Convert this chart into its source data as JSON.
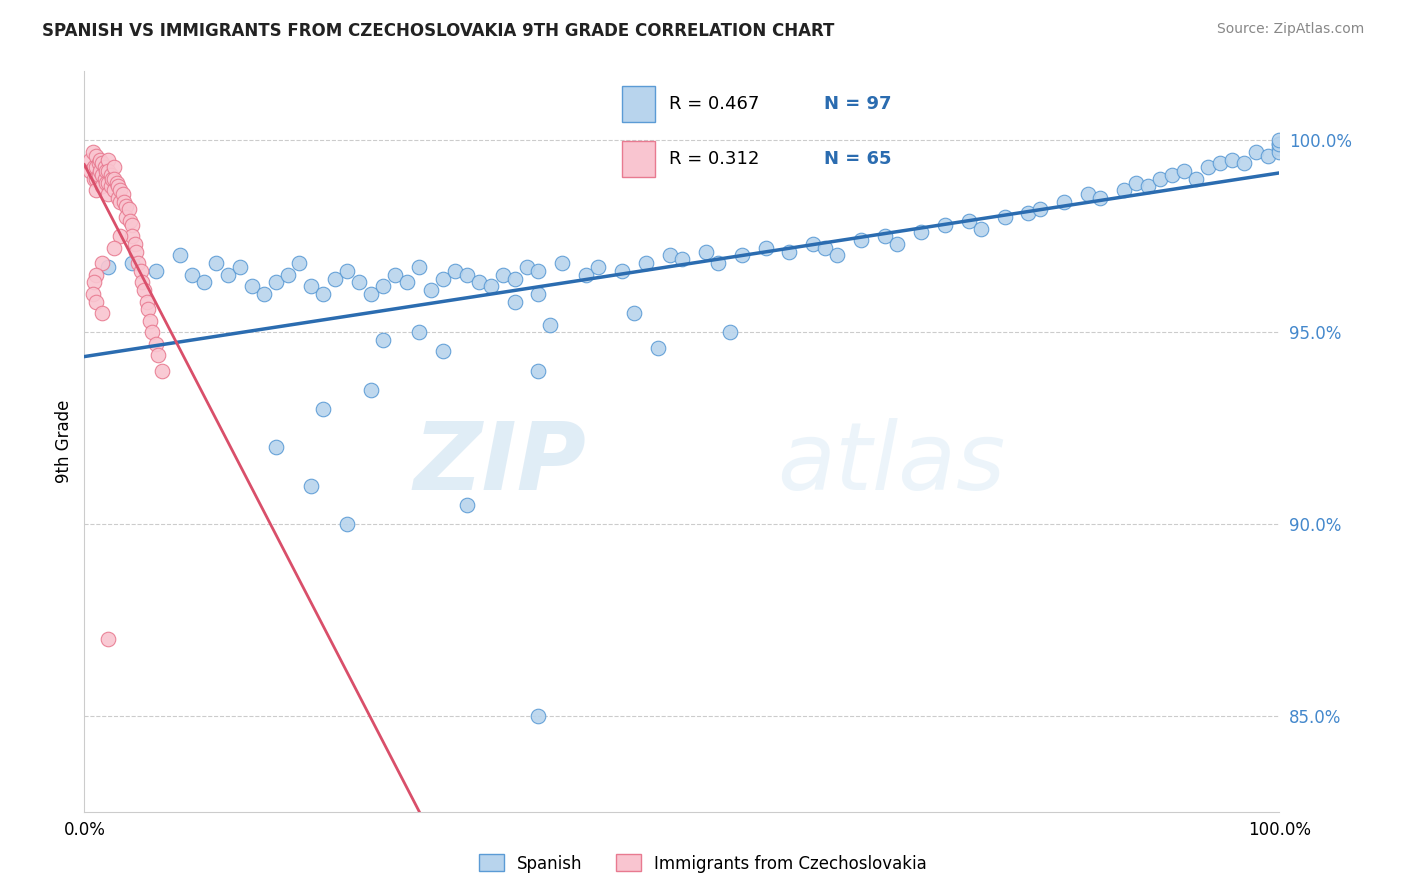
{
  "title": "SPANISH VS IMMIGRANTS FROM CZECHOSLOVAKIA 9TH GRADE CORRELATION CHART",
  "source": "Source: ZipAtlas.com",
  "ylabel": "9th Grade",
  "ytick_labels": [
    "85.0%",
    "90.0%",
    "95.0%",
    "100.0%"
  ],
  "ytick_values": [
    0.85,
    0.9,
    0.95,
    1.0
  ],
  "xlim": [
    0.0,
    1.0
  ],
  "ylim": [
    0.825,
    1.018
  ],
  "legend_blue_r": "R = 0.467",
  "legend_blue_n": "N = 97",
  "legend_pink_r": "R = 0.312",
  "legend_pink_n": "N = 65",
  "blue_color": "#b8d4ed",
  "blue_edge_color": "#5b9bd5",
  "blue_line_color": "#2b6cb0",
  "pink_color": "#f9c5d0",
  "pink_edge_color": "#e87a90",
  "pink_line_color": "#d94f6a",
  "watermark_zip": "ZIP",
  "watermark_atlas": "atlas",
  "blue_scatter_x": [
    0.02,
    0.04,
    0.06,
    0.08,
    0.09,
    0.1,
    0.11,
    0.12,
    0.13,
    0.14,
    0.15,
    0.16,
    0.17,
    0.18,
    0.19,
    0.2,
    0.21,
    0.22,
    0.23,
    0.24,
    0.25,
    0.26,
    0.27,
    0.28,
    0.29,
    0.3,
    0.31,
    0.32,
    0.33,
    0.34,
    0.35,
    0.36,
    0.37,
    0.38,
    0.4,
    0.42,
    0.43,
    0.45,
    0.47,
    0.49,
    0.5,
    0.52,
    0.53,
    0.55,
    0.57,
    0.59,
    0.61,
    0.62,
    0.63,
    0.65,
    0.67,
    0.68,
    0.7,
    0.72,
    0.74,
    0.75,
    0.77,
    0.79,
    0.8,
    0.82,
    0.84,
    0.85,
    0.87,
    0.88,
    0.89,
    0.9,
    0.91,
    0.92,
    0.93,
    0.94,
    0.95,
    0.96,
    0.97,
    0.98,
    0.99,
    1.0,
    1.0,
    1.0,
    1.0,
    1.0,
    0.36,
    0.46,
    0.39,
    0.28,
    0.38,
    0.25,
    0.3,
    0.48,
    0.54,
    0.38,
    0.24,
    0.2,
    0.16,
    0.19,
    0.32,
    0.22,
    0.38
  ],
  "blue_scatter_y": [
    0.967,
    0.968,
    0.966,
    0.97,
    0.965,
    0.963,
    0.968,
    0.965,
    0.967,
    0.962,
    0.96,
    0.963,
    0.965,
    0.968,
    0.962,
    0.96,
    0.964,
    0.966,
    0.963,
    0.96,
    0.962,
    0.965,
    0.963,
    0.967,
    0.961,
    0.964,
    0.966,
    0.965,
    0.963,
    0.962,
    0.965,
    0.964,
    0.967,
    0.966,
    0.968,
    0.965,
    0.967,
    0.966,
    0.968,
    0.97,
    0.969,
    0.971,
    0.968,
    0.97,
    0.972,
    0.971,
    0.973,
    0.972,
    0.97,
    0.974,
    0.975,
    0.973,
    0.976,
    0.978,
    0.979,
    0.977,
    0.98,
    0.981,
    0.982,
    0.984,
    0.986,
    0.985,
    0.987,
    0.989,
    0.988,
    0.99,
    0.991,
    0.992,
    0.99,
    0.993,
    0.994,
    0.995,
    0.994,
    0.997,
    0.996,
    0.999,
    0.998,
    0.997,
    0.999,
    1.0,
    0.958,
    0.955,
    0.952,
    0.95,
    0.96,
    0.948,
    0.945,
    0.946,
    0.95,
    0.94,
    0.935,
    0.93,
    0.92,
    0.91,
    0.905,
    0.9,
    0.85
  ],
  "pink_scatter_x": [
    0.005,
    0.005,
    0.007,
    0.008,
    0.008,
    0.01,
    0.01,
    0.01,
    0.01,
    0.012,
    0.012,
    0.013,
    0.013,
    0.015,
    0.015,
    0.015,
    0.017,
    0.017,
    0.018,
    0.018,
    0.02,
    0.02,
    0.02,
    0.02,
    0.022,
    0.022,
    0.023,
    0.025,
    0.025,
    0.025,
    0.027,
    0.028,
    0.028,
    0.03,
    0.03,
    0.032,
    0.033,
    0.035,
    0.035,
    0.037,
    0.038,
    0.04,
    0.04,
    0.042,
    0.043,
    0.045,
    0.047,
    0.048,
    0.05,
    0.052,
    0.053,
    0.055,
    0.057,
    0.06,
    0.062,
    0.065,
    0.03,
    0.025,
    0.015,
    0.01,
    0.008,
    0.007,
    0.01,
    0.015,
    0.02
  ],
  "pink_scatter_y": [
    0.995,
    0.992,
    0.997,
    0.993,
    0.99,
    0.996,
    0.993,
    0.99,
    0.987,
    0.994,
    0.991,
    0.995,
    0.992,
    0.994,
    0.991,
    0.988,
    0.993,
    0.99,
    0.992,
    0.989,
    0.995,
    0.992,
    0.989,
    0.986,
    0.991,
    0.988,
    0.99,
    0.993,
    0.99,
    0.987,
    0.989,
    0.988,
    0.985,
    0.987,
    0.984,
    0.986,
    0.984,
    0.983,
    0.98,
    0.982,
    0.979,
    0.978,
    0.975,
    0.973,
    0.971,
    0.968,
    0.966,
    0.963,
    0.961,
    0.958,
    0.956,
    0.953,
    0.95,
    0.947,
    0.944,
    0.94,
    0.975,
    0.972,
    0.968,
    0.965,
    0.963,
    0.96,
    0.958,
    0.955,
    0.87
  ]
}
